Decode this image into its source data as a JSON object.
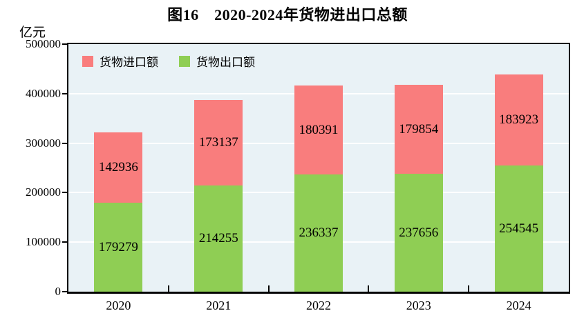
{
  "title": "图16　2020-2024年货物进出口总额",
  "y_unit_label": "亿元",
  "legend": {
    "items": [
      {
        "label": "货物进口额",
        "key": "imports"
      },
      {
        "label": "货物出口额",
        "key": "exports"
      }
    ]
  },
  "colors": {
    "imports": "#f97d7d",
    "exports": "#8fce54",
    "plot_bg": "#e9f2f6",
    "gridline": "#ffffff",
    "axis": "#000000",
    "text": "#000000"
  },
  "chart_data": {
    "type": "bar",
    "stacked": true,
    "title": "图16　2020-2024年货物进出口总额",
    "xlabel": "",
    "ylabel": "亿元",
    "categories": [
      "2020",
      "2021",
      "2022",
      "2023",
      "2024"
    ],
    "series": [
      {
        "name": "货物出口额",
        "key": "exports",
        "values": [
          179279,
          214255,
          236337,
          237656,
          254545
        ]
      },
      {
        "name": "货物进口额",
        "key": "imports",
        "values": [
          142936,
          173137,
          180391,
          179854,
          183923
        ]
      }
    ],
    "ylim": [
      0,
      500000
    ],
    "ytick_step": 100000,
    "yticks": [
      0,
      100000,
      200000,
      300000,
      400000,
      500000
    ],
    "grid": true,
    "legend_position": "top-left-inside"
  }
}
